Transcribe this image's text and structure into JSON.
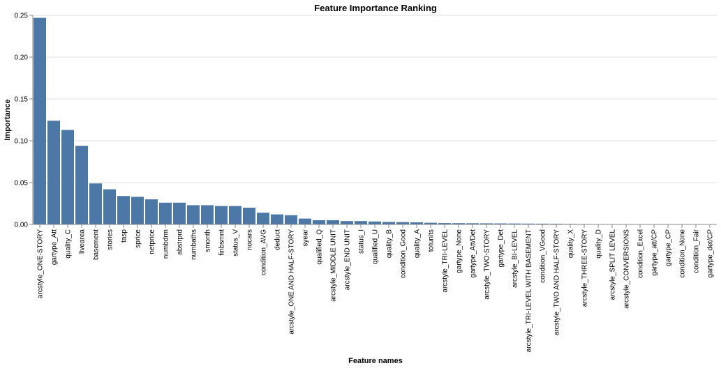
{
  "chart_data": {
    "type": "bar",
    "title": "Feature Importance Ranking",
    "xlabel": "Feature names",
    "ylabel": "Importance",
    "ylim": [
      0,
      0.25
    ],
    "yticks": [
      "0.00",
      "0.05",
      "0.10",
      "0.15",
      "0.20",
      "0.25"
    ],
    "grid": true,
    "bar_color": "#4c78a8",
    "categories": [
      "arcstyle_ONE-STORY",
      "gartype_Att",
      "quality_C",
      "livearea",
      "basement",
      "stories",
      "tasp",
      "sprice",
      "netprice",
      "numbdrm",
      "abstrprd",
      "numbaths",
      "smonth",
      "finbsmnt",
      "status_V",
      "nocars",
      "condition_AVG",
      "deduct",
      "arcstyle_ONE AND HALF-STORY",
      "syear",
      "qualified_Q",
      "arcstyle_MIDDLE UNIT",
      "arcstyle_END UNIT",
      "status_I",
      "qualified_U",
      "quality_B",
      "condition_Good",
      "quality_A",
      "totunits",
      "arcstyle_TRI-LEVEL",
      "gartype_None",
      "gartype_Att/Det",
      "arcstyle_TWO-STORY",
      "gartype_Det",
      "arcstyle_BI-LEVEL",
      "arcstyle_TRI-LEVEL WITH BASEMENT",
      "condition_VGood",
      "arcstyle_TWO AND HALF-STORY",
      "quality_X",
      "arcstyle_THREE-STORY",
      "quality_D",
      "arcstyle_SPLIT LEVEL",
      "arcstyle_CONVERSIONS",
      "condition_Excel",
      "gartype_att/CP",
      "gartype_CP",
      "condition_None",
      "condition_Fair",
      "gartype_det/CP"
    ],
    "values": [
      0.247,
      0.124,
      0.113,
      0.094,
      0.049,
      0.042,
      0.034,
      0.033,
      0.03,
      0.026,
      0.026,
      0.023,
      0.023,
      0.022,
      0.022,
      0.02,
      0.014,
      0.012,
      0.011,
      0.007,
      0.005,
      0.005,
      0.004,
      0.004,
      0.0035,
      0.003,
      0.0028,
      0.0025,
      0.002,
      0.0016,
      0.0015,
      0.0014,
      0.0013,
      0.0012,
      0.0011,
      0.001,
      0.0009,
      0.0008,
      0.0006,
      0.0005,
      0.0004,
      0.0003,
      0.0002,
      0.0002,
      0.0001,
      0.0001,
      0.0001,
      5e-05,
      3e-05
    ]
  }
}
